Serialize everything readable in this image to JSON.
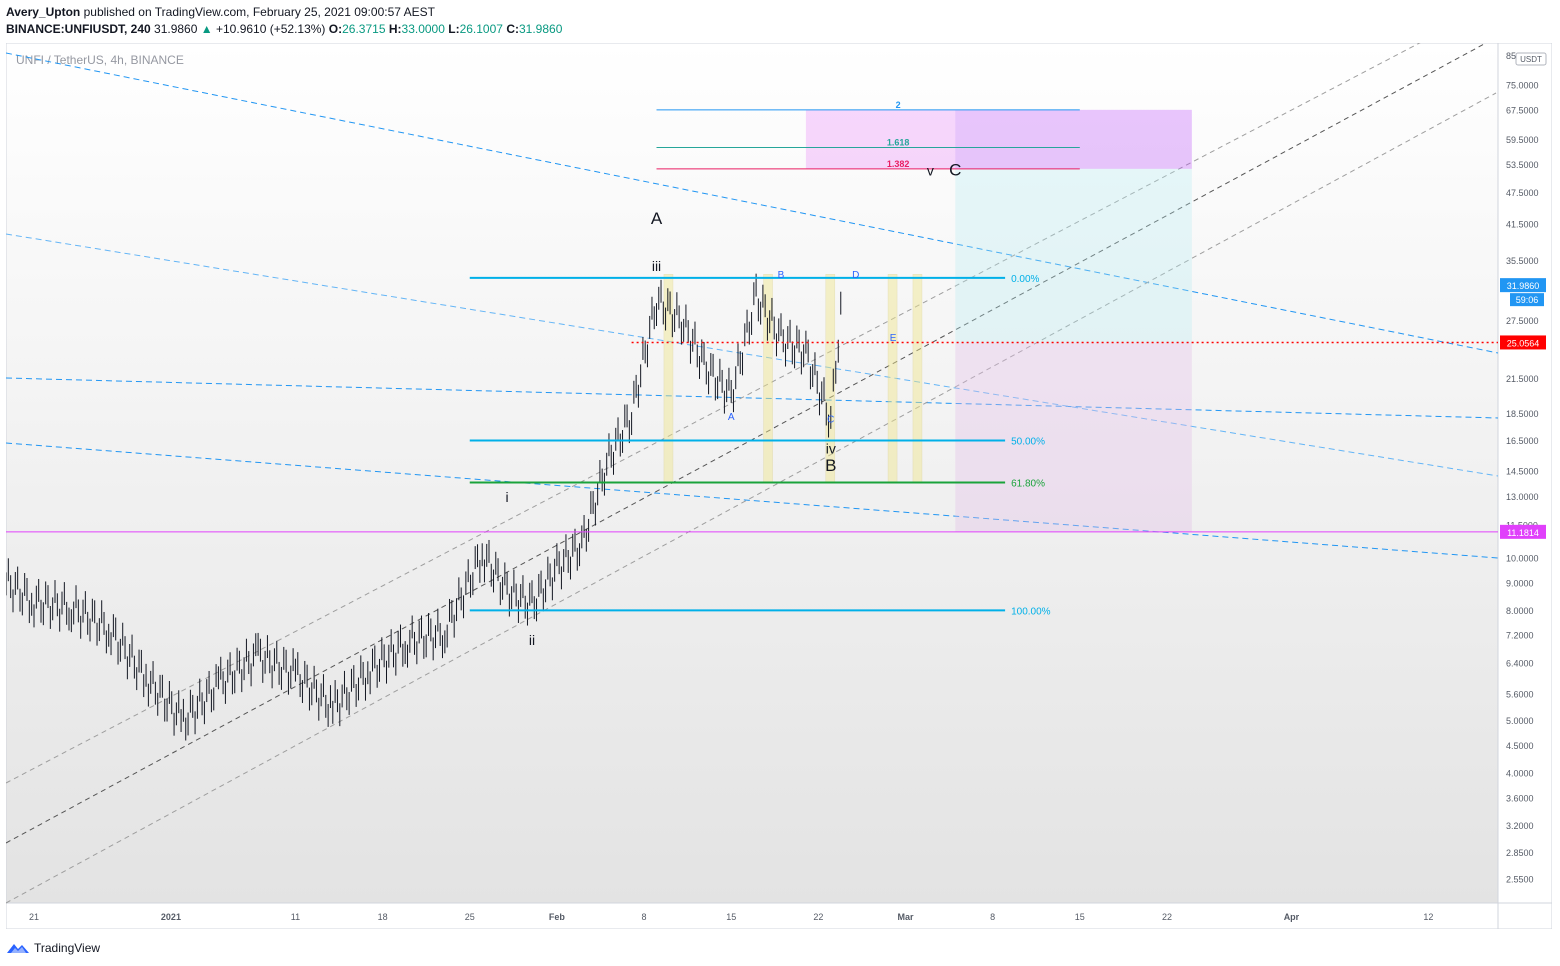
{
  "header": {
    "author": "Avery_Upton",
    "published_text": "published on TradingView.com, February 25, 2021 09:00:57 AEST",
    "symbol": "BINANCE:UNFIUSDT, 240",
    "last": "31.9860",
    "change": "+10.9610 (+52.13%)",
    "o_label": "O:",
    "o_value": "26.3715",
    "h_label": "H:",
    "h_value": "33.0000",
    "l_label": "L:",
    "l_value": "26.1007",
    "c_label": "C:",
    "c_value": "31.9860"
  },
  "chart": {
    "legend": "UNFI / TetherUS, 4h, BINANCE",
    "currency": "USDT",
    "price_badge": "31.9860",
    "countdown": "59:06",
    "hline_red_label": "25.0564",
    "hline_magenta_label": "11.1814"
  },
  "footer": {
    "brand": "TradingView"
  },
  "colors": {
    "up": "#089981",
    "bar": "#131722",
    "fib_blue": "#00b0e8",
    "fib_green": "#1aa33b",
    "magenta": "#e040fb",
    "red": "#ff0000",
    "label_blue": "#2962ff",
    "fib_pink": "#e91e63"
  },
  "chart_data": {
    "type": "line",
    "title": "UNFI / TetherUS, 4h, BINANCE",
    "scale": "log",
    "ylim": [
      2.3,
      86
    ],
    "y_ticks": [
      "85.0000",
      "75.0000",
      "67.5000",
      "59.5000",
      "53.5000",
      "47.5000",
      "41.5000",
      "35.5000",
      "27.5000",
      "21.5000",
      "18.5000",
      "16.5000",
      "14.5000",
      "13.0000",
      "11.5000",
      "10.0000",
      "9.0000",
      "8.0000",
      "7.2000",
      "6.4000",
      "5.6000",
      "5.0000",
      "4.5000",
      "4.0000",
      "3.6000",
      "3.2000",
      "2.8500",
      "2.5500"
    ],
    "x_ticks": [
      "21",
      "2021",
      "11",
      "18",
      "25",
      "Feb",
      "8",
      "15",
      "22",
      "Mar",
      "8",
      "15",
      "22",
      "Apr",
      "12"
    ],
    "series": [
      {
        "x": [
          "Dec 15",
          "Dec 18",
          "Dec 21",
          "Dec 24",
          "Dec 27",
          "Dec 30",
          "Jan 2",
          "Jan 5",
          "Jan 8",
          "Jan 11",
          "Jan 14",
          "Jan 17",
          "Jan 20",
          "Jan 23",
          "Jan 26",
          "Jan 28",
          "Jan 30",
          "Feb 1",
          "Feb 3",
          "Feb 5",
          "Feb 7",
          "Feb 9",
          "Feb 11",
          "Feb 13",
          "Feb 15",
          "Feb 17",
          "Feb 19",
          "Feb 21",
          "Feb 23",
          "Feb 24"
        ],
        "values": [
          10.1,
          9.3,
          8.3,
          8.1,
          7.4,
          6.0,
          5.0,
          5.9,
          6.6,
          6.1,
          5.3,
          6.2,
          7.0,
          7.3,
          10.2,
          8.7,
          8.2,
          9.6,
          10.6,
          15.0,
          18.5,
          30.0,
          27.5,
          22.5,
          20.0,
          30.5,
          25.5,
          24.0,
          18.0,
          31.986
        ]
      }
    ],
    "fib_levels": [
      {
        "label": "0.00%",
        "price": 33.0
      },
      {
        "label": "50.00%",
        "price": 16.5
      },
      {
        "label": "61.80%",
        "price": 13.8
      },
      {
        "label": "100.00%",
        "price": 8.0
      }
    ],
    "extension_levels": [
      {
        "label": "2",
        "price": 67.5
      },
      {
        "label": "1.618",
        "price": 57.5
      },
      {
        "label": "1.382",
        "price": 52.5
      }
    ],
    "horizontal_lines": [
      {
        "label": "25.0564",
        "price": 25.0564
      },
      {
        "label": "11.1814",
        "price": 11.1814
      }
    ],
    "wave_labels": [
      {
        "text": "A",
        "x": "Feb 9",
        "price": 41.5
      },
      {
        "text": "iii",
        "x": "Feb 9",
        "price": 34.0
      },
      {
        "text": "i",
        "x": "Jan 28",
        "price": 12.7
      },
      {
        "text": "ii",
        "x": "Jan 30",
        "price": 6.9
      },
      {
        "text": "iv",
        "x": "Feb 23",
        "price": 15.6
      },
      {
        "text": "B",
        "x": "Feb 23",
        "price": 14.5
      },
      {
        "text": "v",
        "x": "Mar 3",
        "price": 51.0
      },
      {
        "text": "C",
        "x": "Mar 5",
        "price": 51.0
      }
    ],
    "triangle_labels": [
      {
        "text": "A",
        "x": "Feb 15",
        "price": 18.0
      },
      {
        "text": "B",
        "x": "Feb 19",
        "price": 33.0
      },
      {
        "text": "C",
        "x": "Feb 23",
        "price": 17.8
      },
      {
        "text": "D",
        "x": "Feb 25",
        "price": 33.0
      },
      {
        "text": "E",
        "x": "Feb 28",
        "price": 25.2
      }
    ],
    "grid": true,
    "legend": "top-left"
  }
}
